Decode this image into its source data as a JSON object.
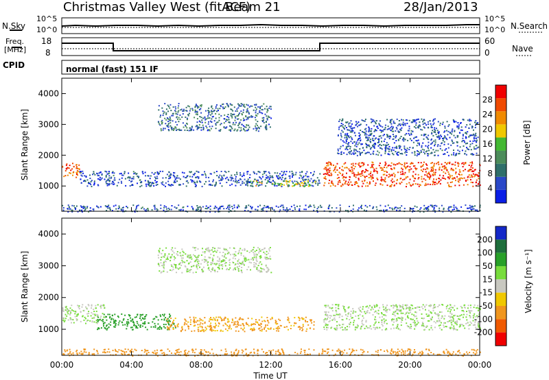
{
  "header": {
    "site": "Christmas Valley West (fitACF)",
    "beam": "Beam 21",
    "date": "28/Jan/2013"
  },
  "panels": {
    "nsky_label": "N.Sky",
    "nsky_ticks": [
      "10^5",
      "10^0"
    ],
    "nsearch_label": "N.Search",
    "nsearch_ticks": [
      "10^5",
      "10^0"
    ],
    "freq_label_line1": "Freq.",
    "freq_label_line2": "[MHz]",
    "freq_ticks": [
      "18",
      "8"
    ],
    "nave_label": "Nave",
    "nave_ticks": [
      "60",
      "0"
    ],
    "cpid_label": "CPID",
    "cpid_value": "normal (fast) 151 IF"
  },
  "colors": {
    "power_scale": [
      "#0a1ee6",
      "#2a48c8",
      "#2f6f6a",
      "#4c8c5a",
      "#43b832",
      "#f0c800",
      "#f08a00",
      "#f04a00",
      "#f00000"
    ],
    "velocity_scale": [
      "#1428c8",
      "#1e6e3c",
      "#28a028",
      "#78dc3c",
      "#c8c8c0",
      "#f0c800",
      "#f0961e",
      "#f05a00",
      "#f00000"
    ]
  },
  "chart_data": [
    {
      "type": "heatmap",
      "quantity": "Power",
      "ylabel": "Slant Range [km]",
      "yticks": [
        1000,
        2000,
        3000,
        4000
      ],
      "ylim": [
        180,
        4500
      ],
      "colorbar_label": "Power [dB]",
      "colorbar_ticks": [
        4,
        8,
        12,
        16,
        20,
        24,
        28
      ],
      "colorbar_range": [
        0,
        32
      ],
      "features": [
        {
          "t": [
            0.0,
            1.0
          ],
          "range_km": [
            1300,
            1800
          ],
          "level_db": 26
        },
        {
          "t": [
            1.0,
            14.8
          ],
          "range_km": [
            1000,
            1500
          ],
          "level_db": 6
        },
        {
          "t": [
            10.8,
            14.6
          ],
          "range_km": [
            1000,
            1200
          ],
          "level_db": 18
        },
        {
          "t": [
            5.5,
            12.0
          ],
          "range_km": [
            2800,
            3700
          ],
          "level_db": 8
        },
        {
          "t": [
            15.0,
            24.0
          ],
          "range_km": [
            1000,
            1800
          ],
          "level_db": 27
        },
        {
          "t": [
            15.8,
            23.9
          ],
          "range_km": [
            2000,
            3200
          ],
          "level_db": 6
        },
        {
          "t": [
            0.0,
            24.0
          ],
          "range_km": [
            180,
            400
          ],
          "level_db": 6
        }
      ]
    },
    {
      "type": "heatmap",
      "quantity": "Velocity",
      "ylabel": "Slant Range [km]",
      "yticks": [
        1000,
        2000,
        3000,
        4000
      ],
      "ylim": [
        180,
        4500
      ],
      "xlabel": "Time UT",
      "xticks": [
        "00:00",
        "04:00",
        "08:00",
        "12:00",
        "16:00",
        "20:00",
        "00:00"
      ],
      "xlim_hours": [
        0,
        24
      ],
      "colorbar_label": "Velocity [m s⁻¹]",
      "colorbar_ticks": [
        200,
        100,
        50,
        15,
        -15,
        -50,
        -100,
        -200
      ],
      "features": [
        {
          "t": [
            0.0,
            2.5
          ],
          "range_km": [
            1200,
            1800
          ],
          "velocity": 0
        },
        {
          "t": [
            2.0,
            6.5
          ],
          "range_km": [
            1000,
            1500
          ],
          "velocity": 60
        },
        {
          "t": [
            6.0,
            14.5
          ],
          "range_km": [
            950,
            1400
          ],
          "velocity": -40
        },
        {
          "t": [
            5.5,
            12.0
          ],
          "range_km": [
            2800,
            3600
          ],
          "velocity": 0
        },
        {
          "t": [
            15.0,
            24.0
          ],
          "range_km": [
            1000,
            1800
          ],
          "velocity": 0
        },
        {
          "t": [
            0.0,
            24.0
          ],
          "range_km": [
            180,
            400
          ],
          "velocity": -50
        }
      ]
    }
  ]
}
